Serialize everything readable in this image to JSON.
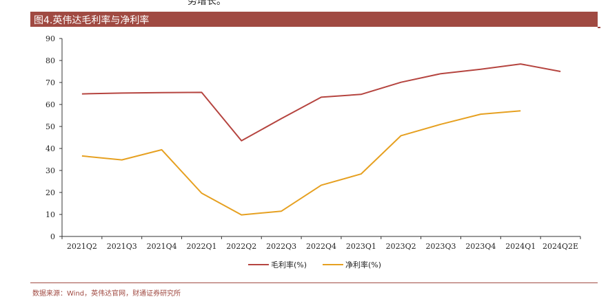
{
  "header_text": "务增长。",
  "title": "图4.英伟达毛利率与净利率",
  "source": "数据来源：Wind，英伟达官网，财通证券研究所",
  "colors": {
    "title_bg": "#a04a42",
    "gross": "#b5443f",
    "net": "#e6a020",
    "axis": "#333333"
  },
  "chart_data": {
    "type": "line",
    "categories": [
      "2021Q2",
      "2021Q3",
      "2021Q4",
      "2022Q1",
      "2022Q2",
      "2022Q3",
      "2022Q4",
      "2023Q1",
      "2023Q2",
      "2023Q3",
      "2023Q4",
      "2024Q1",
      "2024Q2E"
    ],
    "yticks": [
      "0",
      "10",
      "20",
      "30",
      "40",
      "50",
      "60",
      "70",
      "80",
      "90"
    ],
    "ylim": [
      0,
      90
    ],
    "grid": false,
    "legend_position": "bottom",
    "series": [
      {
        "name": "毛利率(%)",
        "color": "#b5443f",
        "values": [
          64.8,
          65.2,
          65.4,
          65.5,
          43.5,
          53.6,
          63.3,
          64.6,
          70.1,
          74.0,
          76.0,
          78.4,
          75.0
        ]
      },
      {
        "name": "净利率(%)",
        "color": "#e6a020",
        "values": [
          36.6,
          34.8,
          39.4,
          19.7,
          9.8,
          11.5,
          23.3,
          28.4,
          45.8,
          51.0,
          55.6,
          57.1,
          null
        ]
      }
    ]
  }
}
